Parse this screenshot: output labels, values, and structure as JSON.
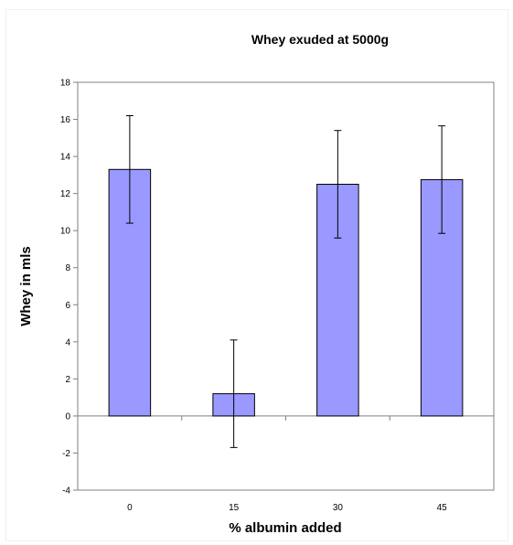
{
  "chart_data": {
    "type": "bar",
    "title": "Whey exuded at 5000g",
    "xlabel": "% albumin added",
    "ylabel": "Whey in mls",
    "categories": [
      "0",
      "15",
      "30",
      "45"
    ],
    "values": [
      13.3,
      1.2,
      12.5,
      12.75
    ],
    "error_bars": [
      2.9,
      2.9,
      2.9,
      2.9
    ],
    "ylim": [
      -4,
      18
    ],
    "yticks": [
      -4,
      -2,
      0,
      2,
      4,
      6,
      8,
      10,
      12,
      14,
      16,
      18
    ],
    "grid": false,
    "legend": "none",
    "colors": {
      "bar_fill": "#9999ff",
      "bar_stroke": "#000000",
      "axis": "#808080",
      "error_bar": "#000000"
    }
  }
}
